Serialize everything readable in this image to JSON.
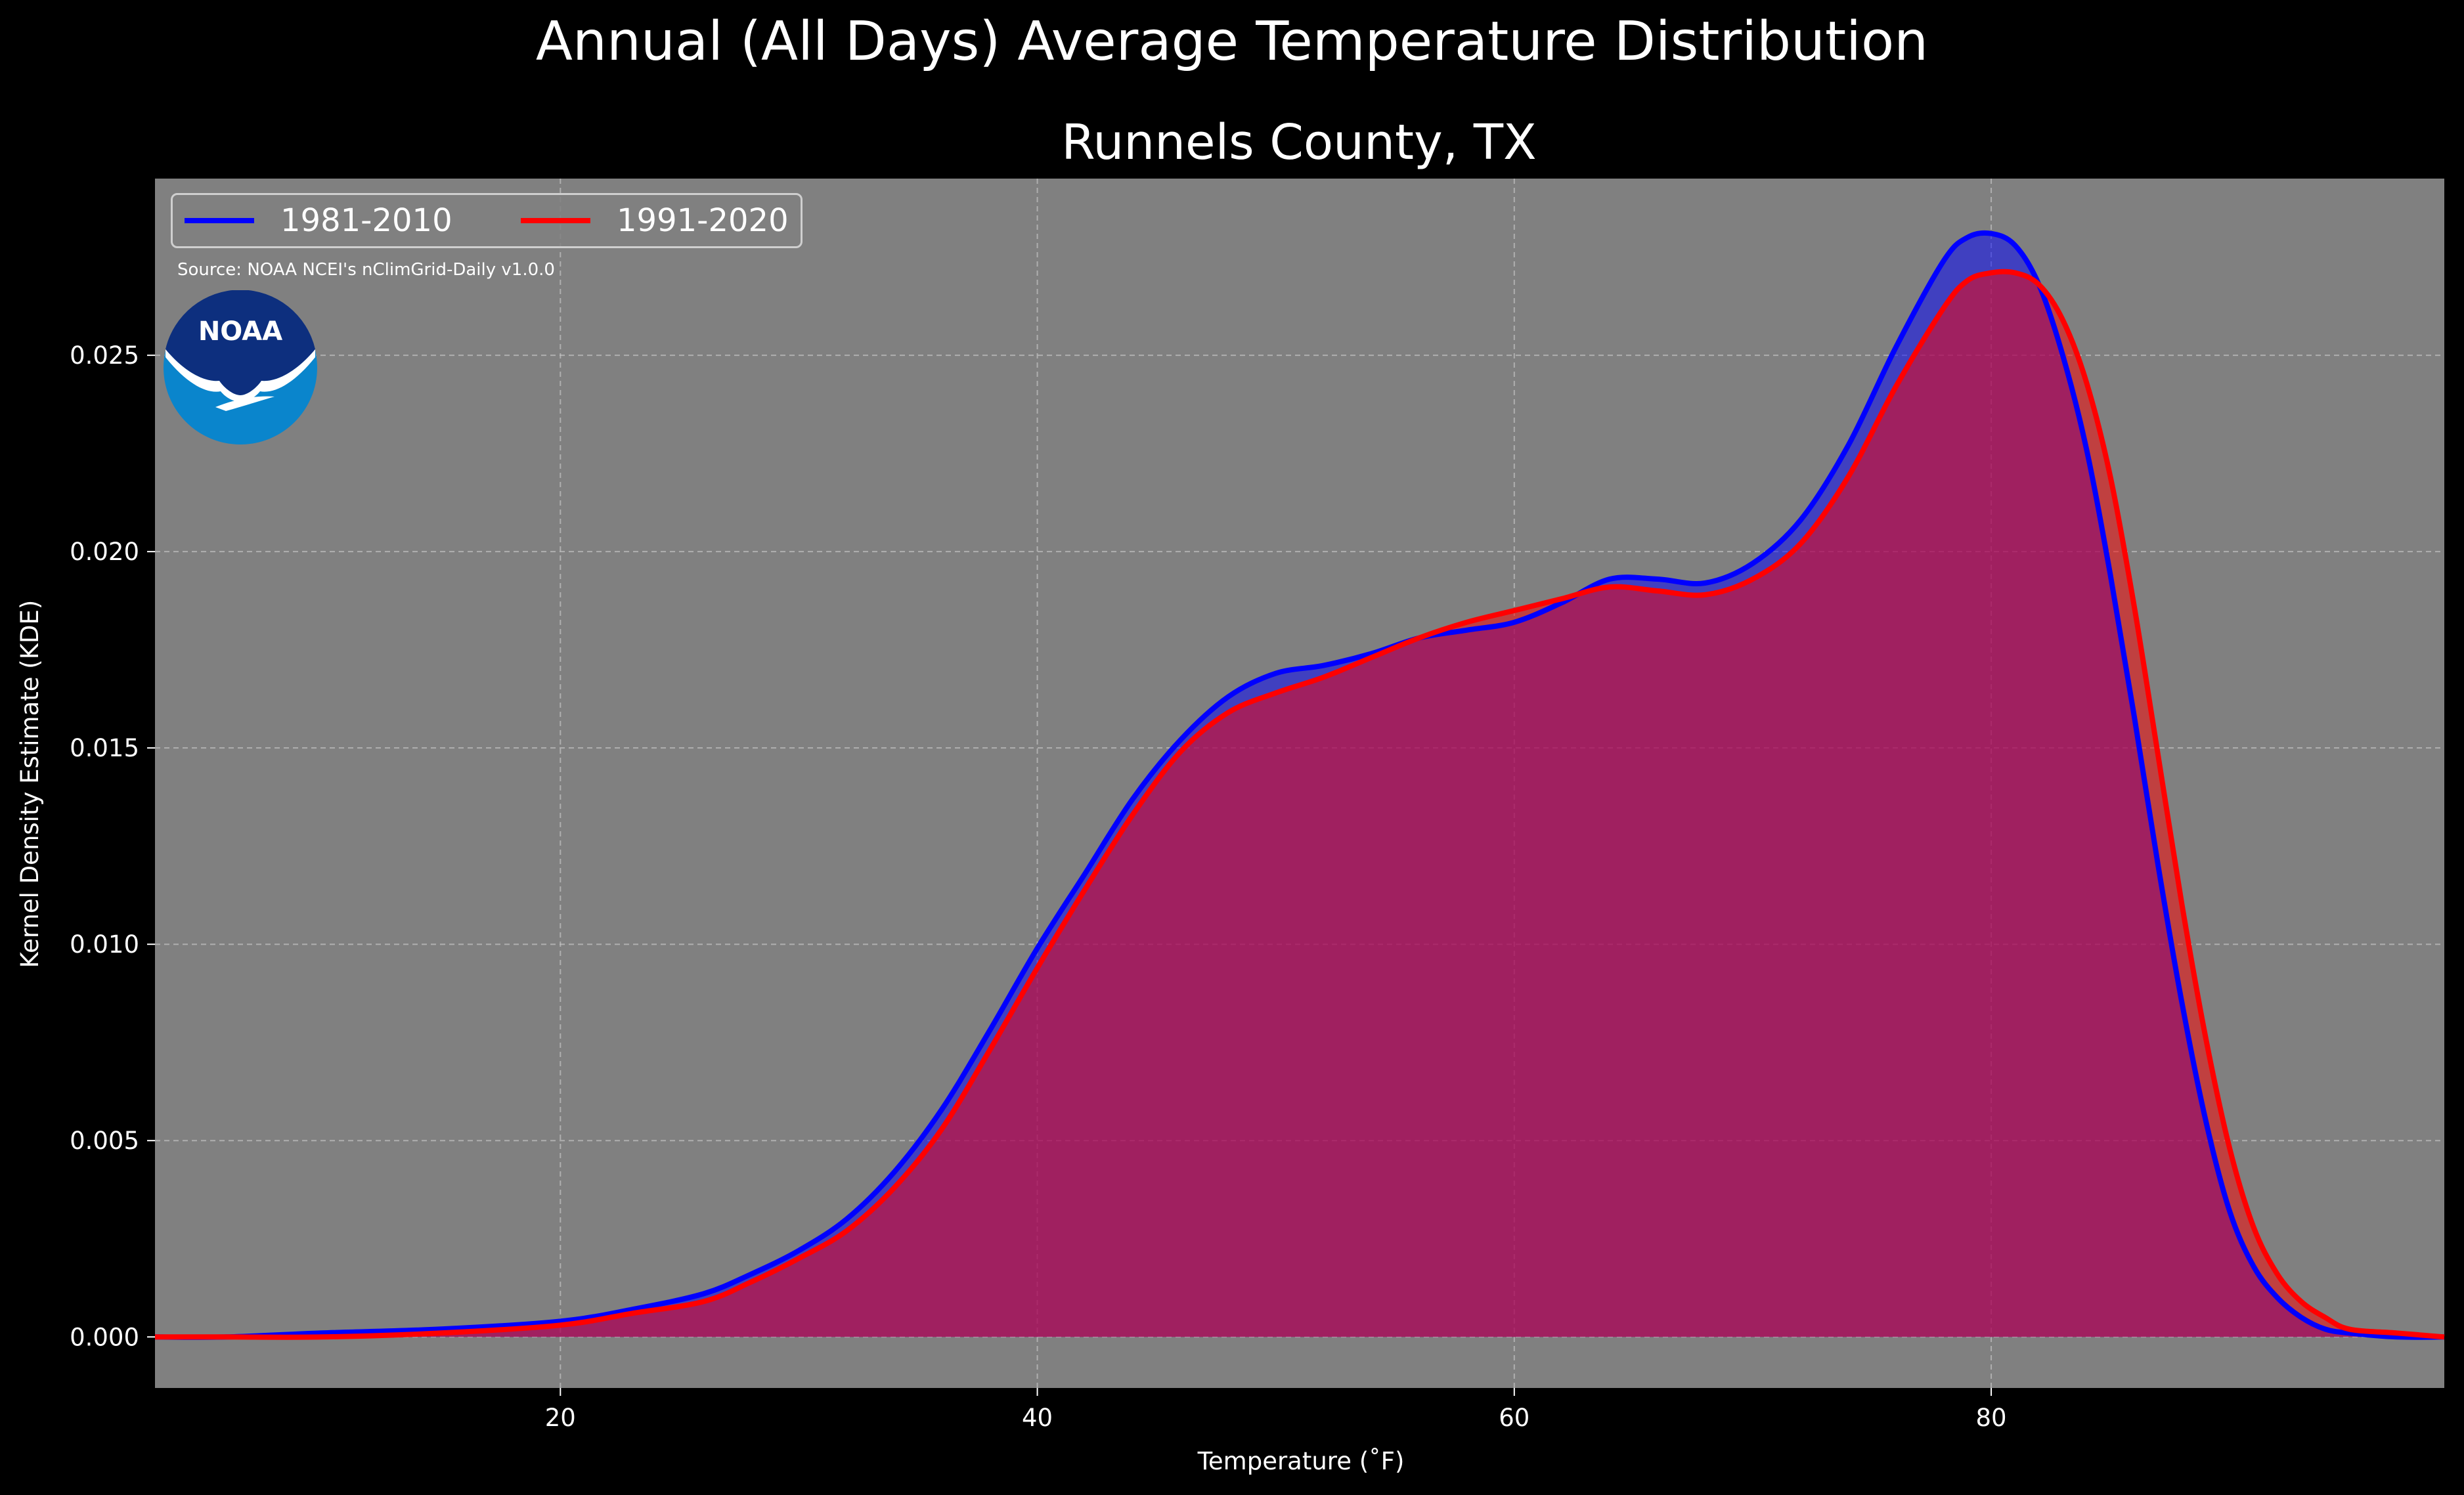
{
  "suptitle": "Annual (All Days) Average Temperature Distribution",
  "source_note": "Source: NOAA NCEI's nClimGrid-Daily v1.0.0",
  "logo": {
    "icon": "noaa-logo-icon",
    "text": "NOAA"
  },
  "colors": {
    "background": "#000000",
    "plot_background": "#808080",
    "series_1981_2010": "#0000ff",
    "series_1991_2020": "#ff0000",
    "overlap_fill": "#9e1f5c"
  },
  "chart_data": {
    "type": "area",
    "title": "Runnels County, TX",
    "xlabel": "Temperature ($^\\circ$F)",
    "xlabel_display": "Temperature (˚F)",
    "ylabel": "Kernel Density Estimate (KDE)",
    "xlim": [
      3,
      99
    ],
    "ylim": [
      -0.0013,
      0.0295
    ],
    "xticks": [
      20,
      40,
      60,
      80
    ],
    "yticks": [
      0.0,
      0.005,
      0.01,
      0.015,
      0.02,
      0.025
    ],
    "ytick_labels": [
      "0.000",
      "0.005",
      "0.010",
      "0.015",
      "0.020",
      "0.025"
    ],
    "grid": true,
    "legend_position": "top-left",
    "x": [
      3,
      6,
      10,
      15,
      20,
      23,
      26,
      28,
      30,
      32,
      34,
      36,
      38,
      40,
      42,
      44,
      46,
      48,
      50,
      52,
      54,
      56,
      58,
      60,
      62,
      64,
      66,
      68,
      70,
      72,
      74,
      76,
      78,
      79,
      80,
      81,
      82,
      83,
      84,
      85,
      86,
      87,
      88,
      89,
      90,
      91,
      92,
      93,
      94,
      95,
      97,
      99
    ],
    "series": [
      {
        "name": "1981-2010",
        "color": "#0000ff",
        "values": [
          0.0,
          0.0,
          0.0001,
          0.0002,
          0.0004,
          0.0007,
          0.0011,
          0.0016,
          0.0022,
          0.003,
          0.0042,
          0.0058,
          0.0078,
          0.0099,
          0.0118,
          0.0137,
          0.0152,
          0.0163,
          0.0169,
          0.0171,
          0.0174,
          0.0178,
          0.018,
          0.0182,
          0.0187,
          0.0193,
          0.0193,
          0.0192,
          0.0197,
          0.0208,
          0.0227,
          0.0252,
          0.0274,
          0.028,
          0.0281,
          0.0278,
          0.0268,
          0.025,
          0.0226,
          0.0194,
          0.0158,
          0.012,
          0.0085,
          0.0055,
          0.0032,
          0.0018,
          0.001,
          0.0005,
          0.0002,
          0.0001,
          0.0,
          0.0
        ]
      },
      {
        "name": "1991-2020",
        "color": "#ff0000",
        "values": [
          0.0,
          0.0,
          0.0,
          0.0001,
          0.0003,
          0.0006,
          0.0009,
          0.0014,
          0.002,
          0.0027,
          0.0038,
          0.0053,
          0.0073,
          0.0094,
          0.0114,
          0.0133,
          0.0149,
          0.0159,
          0.0164,
          0.0168,
          0.0173,
          0.0178,
          0.0182,
          0.0185,
          0.0188,
          0.0191,
          0.019,
          0.0189,
          0.0193,
          0.0202,
          0.0219,
          0.0242,
          0.0262,
          0.0269,
          0.0271,
          0.0271,
          0.0268,
          0.0259,
          0.0243,
          0.0219,
          0.0186,
          0.0148,
          0.011,
          0.0076,
          0.0048,
          0.0028,
          0.0016,
          0.0009,
          0.0005,
          0.0002,
          0.0001,
          0.0
        ]
      }
    ]
  }
}
